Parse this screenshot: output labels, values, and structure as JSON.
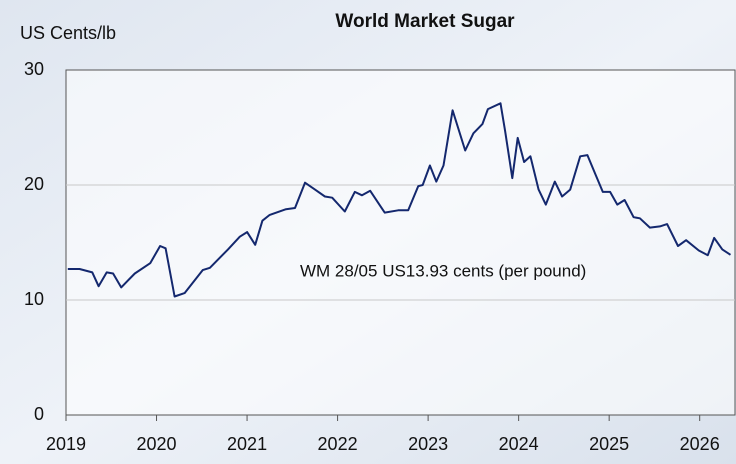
{
  "chart_data": {
    "type": "line",
    "title": "World Market Sugar",
    "y_label": "US Cents/lb",
    "annotation": "WM 28/05 US13.93 cents (per pound)",
    "x": [
      2019.02,
      2019.15,
      2019.29,
      2019.36,
      2019.45,
      2019.52,
      2019.61,
      2019.76,
      2019.93,
      2020.04,
      2020.1,
      2020.2,
      2020.31,
      2020.51,
      2020.59,
      2020.79,
      2020.92,
      2021.0,
      2021.09,
      2021.17,
      2021.25,
      2021.43,
      2021.53,
      2021.64,
      2021.75,
      2021.86,
      2021.94,
      2022.08,
      2022.19,
      2022.27,
      2022.36,
      2022.52,
      2022.67,
      2022.78,
      2022.89,
      2022.94,
      2023.02,
      2023.09,
      2023.17,
      2023.27,
      2023.41,
      2023.5,
      2023.6,
      2023.66,
      2023.8,
      2023.85,
      2023.93,
      2023.99,
      2024.06,
      2024.13,
      2024.22,
      2024.3,
      2024.4,
      2024.48,
      2024.57,
      2024.68,
      2024.76,
      2024.85,
      2024.93,
      2025.01,
      2025.09,
      2025.17,
      2025.27,
      2025.34,
      2025.45,
      2025.56,
      2025.64,
      2025.76,
      2025.85,
      2025.99,
      2026.09,
      2026.16,
      2026.25,
      2026.34
    ],
    "series": [
      {
        "name": "World Market Sugar",
        "color": "#14286e",
        "values": [
          12.7,
          12.7,
          12.4,
          11.2,
          12.4,
          12.3,
          11.1,
          12.3,
          13.2,
          14.7,
          14.5,
          10.3,
          10.6,
          12.6,
          12.8,
          14.4,
          15.5,
          15.9,
          14.8,
          16.9,
          17.4,
          17.9,
          18.0,
          20.2,
          19.6,
          19.0,
          18.9,
          17.7,
          19.4,
          19.1,
          19.5,
          17.6,
          17.8,
          17.8,
          19.9,
          20.0,
          21.7,
          20.3,
          21.7,
          26.5,
          23.0,
          24.5,
          25.3,
          26.6,
          27.1,
          24.7,
          20.6,
          24.1,
          22.0,
          22.5,
          19.6,
          18.3,
          20.3,
          19.0,
          19.6,
          22.5,
          22.6,
          20.9,
          19.4,
          19.4,
          18.3,
          18.7,
          17.2,
          17.1,
          16.3,
          16.4,
          16.6,
          14.7,
          15.2,
          14.3,
          13.9,
          15.4,
          14.4,
          13.93
        ]
      }
    ],
    "xlim": [
      2019,
      2026.39
    ],
    "xticks": [
      2019,
      2020,
      2021,
      2022,
      2023,
      2024,
      2025,
      2026
    ],
    "ylim": [
      0,
      30
    ],
    "yticks": [
      0,
      10,
      20,
      30
    ],
    "grid": true
  }
}
